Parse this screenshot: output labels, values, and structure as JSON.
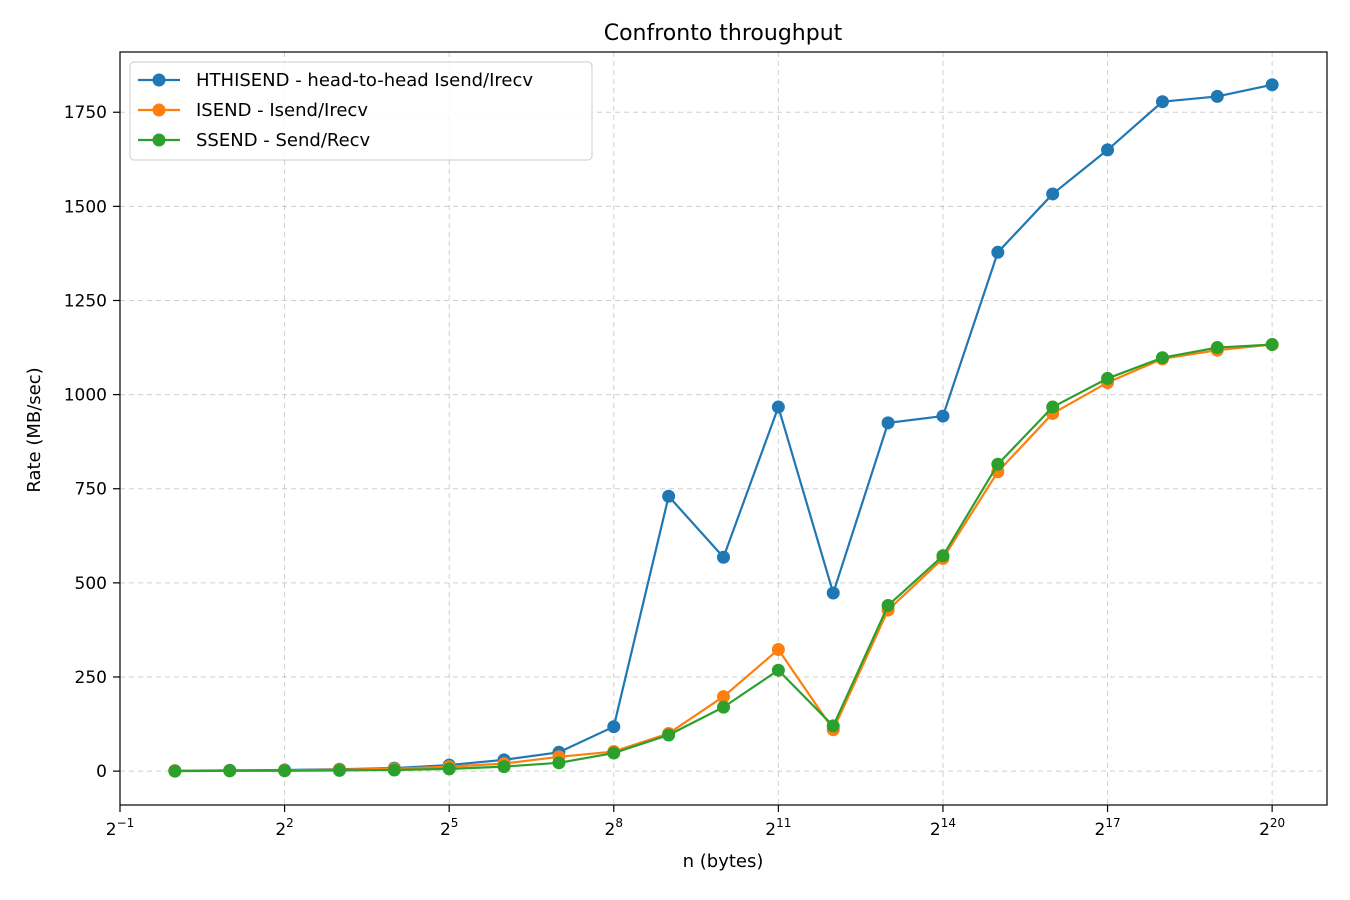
{
  "chart_data": {
    "type": "line",
    "title": "Confronto throughput",
    "xlabel": "n (bytes)",
    "ylabel": "Rate (MB/sec)",
    "x_scale": "log2",
    "x_exponents": [
      0,
      1,
      2,
      3,
      4,
      5,
      6,
      7,
      8,
      9,
      10,
      11,
      12,
      13,
      14,
      15,
      16,
      17,
      18,
      19,
      20
    ],
    "x": [
      1,
      2,
      4,
      8,
      16,
      32,
      64,
      128,
      256,
      512,
      1024,
      2048,
      4096,
      8192,
      16384,
      32768,
      65536,
      131072,
      262144,
      524288,
      1048576
    ],
    "xlim_exponents": [
      -1,
      21
    ],
    "x_ticks": [
      {
        "exp": -1,
        "base": "2",
        "sup": "−1"
      },
      {
        "exp": 2,
        "base": "2",
        "sup": "2"
      },
      {
        "exp": 5,
        "base": "2",
        "sup": "5"
      },
      {
        "exp": 8,
        "base": "2",
        "sup": "8"
      },
      {
        "exp": 11,
        "base": "2",
        "sup": "11"
      },
      {
        "exp": 14,
        "base": "2",
        "sup": "14"
      },
      {
        "exp": 17,
        "base": "2",
        "sup": "17"
      },
      {
        "exp": 20,
        "base": "2",
        "sup": "20"
      }
    ],
    "ylim": [
      -90,
      1910
    ],
    "y_ticks": [
      0,
      250,
      500,
      750,
      1000,
      1250,
      1500,
      1750
    ],
    "grid": true,
    "legend_position": "top-left",
    "series": [
      {
        "name": "HTHISEND - head-to-head Isend/Irecv",
        "color": "#1f77b4",
        "values": [
          1,
          2,
          3,
          5,
          8,
          16,
          30,
          50,
          118,
          730,
          568,
          967,
          473,
          925,
          943,
          1378,
          1533,
          1650,
          1778,
          1792,
          1823
        ]
      },
      {
        "name": "ISEND - Isend/Irecv",
        "color": "#ff7f0e",
        "values": [
          1,
          1,
          2,
          4,
          6,
          12,
          20,
          38,
          52,
          100,
          198,
          323,
          110,
          428,
          565,
          795,
          950,
          1032,
          1095,
          1118,
          1133
        ]
      },
      {
        "name": "SSEND - Send/Recv",
        "color": "#2ca02c",
        "values": [
          0,
          1,
          1,
          2,
          3,
          6,
          12,
          22,
          48,
          96,
          170,
          268,
          120,
          440,
          572,
          815,
          967,
          1043,
          1098,
          1125,
          1133
        ]
      }
    ]
  }
}
